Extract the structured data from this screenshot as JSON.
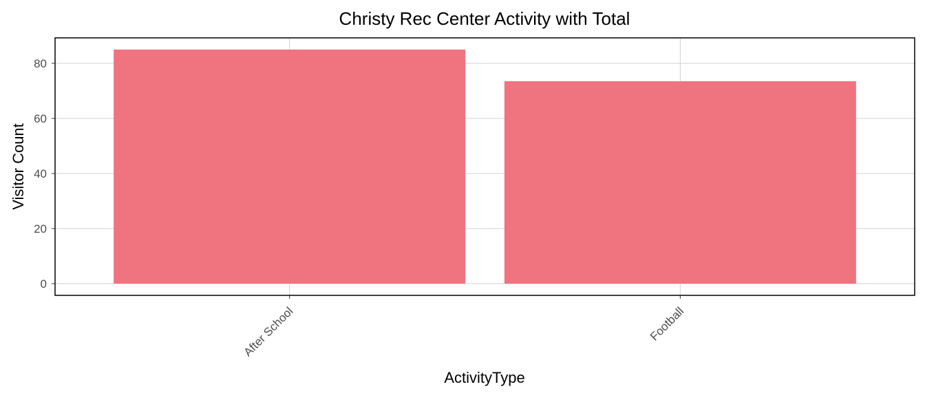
{
  "chart_data": {
    "type": "bar",
    "title": "Christy Rec Center Activity with Total",
    "xlabel": "ActivityType",
    "ylabel": "Visitor Count",
    "categories": [
      "After School",
      "Football"
    ],
    "values": [
      85,
      73.5
    ],
    "ylim": [
      -4.25,
      89.25
    ],
    "yticks": [
      0,
      20,
      40,
      60,
      80
    ],
    "ytick_labels": [
      "0",
      "20",
      "40",
      "60",
      "80"
    ],
    "bar_color": "#f07380",
    "grid": true,
    "legend": "none"
  }
}
